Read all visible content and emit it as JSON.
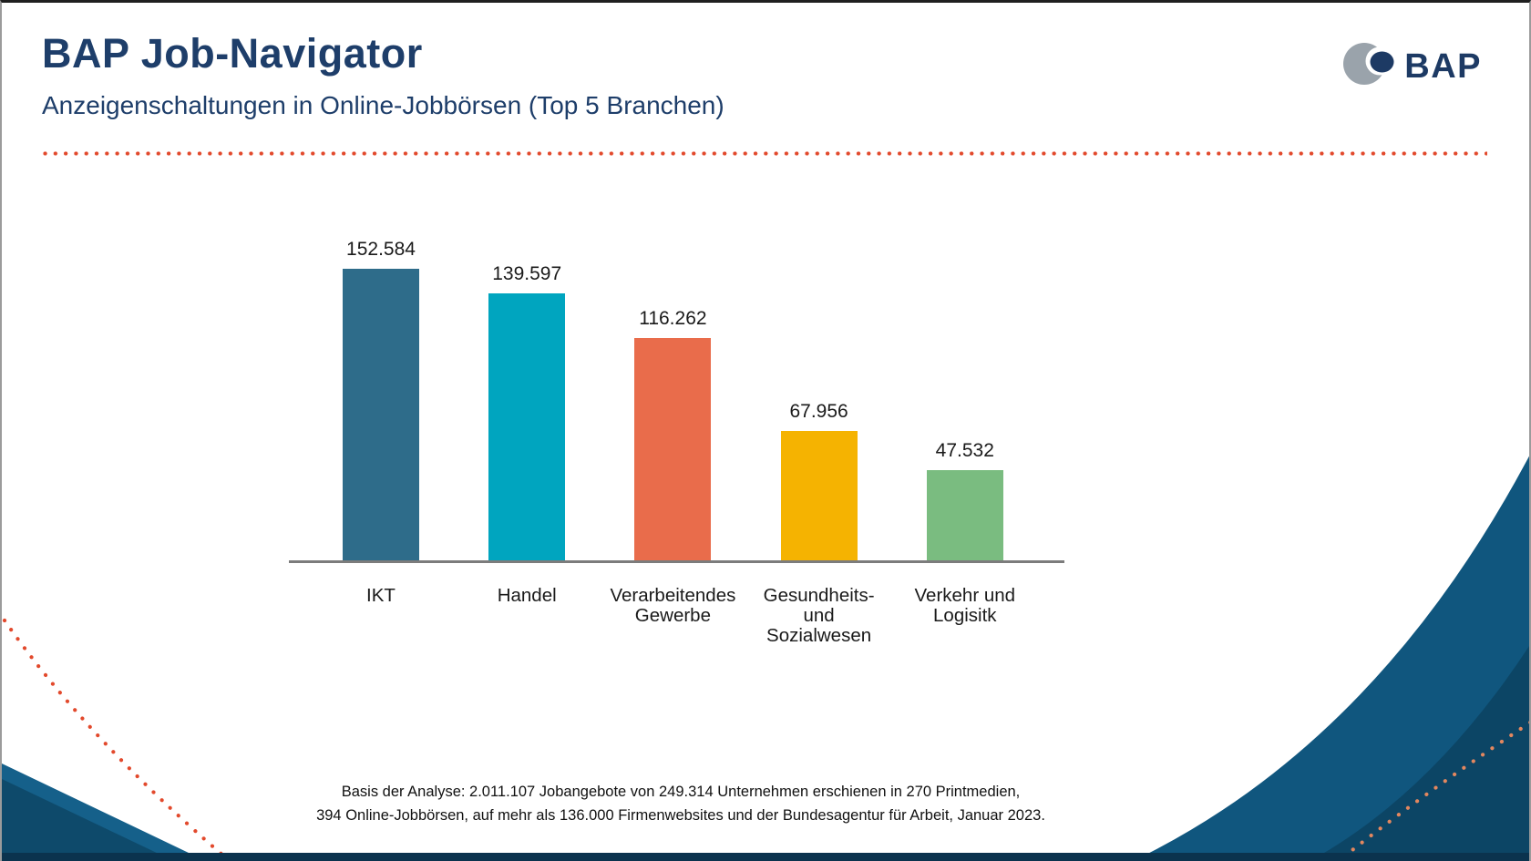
{
  "header": {
    "title": "BAP Job-Navigator",
    "subtitle": "Anzeigenschaltungen in Online-Jobbörsen (Top 5 Branchen)",
    "logo_text": "BAP"
  },
  "chart_data": {
    "type": "bar",
    "title": "Anzeigenschaltungen in Online-Jobbörsen (Top 5 Branchen)",
    "categories": [
      "IKT",
      "Handel",
      "Verarbeitendes Gewerbe",
      "Gesundheits- und Sozialwesen",
      "Verkehr und Logisitk"
    ],
    "category_labels_multiline": [
      "IKT",
      "Handel",
      "Verarbeitendes\nGewerbe",
      "Gesundheits-\nund\nSozialwesen",
      "Verkehr und\nLogisitk"
    ],
    "values": [
      152584,
      139597,
      116262,
      67956,
      47532
    ],
    "value_labels": [
      "152.584",
      "139.597",
      "116.262",
      "67.956",
      "47.532"
    ],
    "bar_colors": [
      "#2e6c8a",
      "#00a5bf",
      "#e96c4b",
      "#f5b301",
      "#7abc80"
    ],
    "ylim": [
      0,
      160000
    ],
    "xlabel": "",
    "ylabel": "",
    "grid": false,
    "legend": false,
    "value_labels_position": "above-bars"
  },
  "footer": {
    "line1": "Basis der Analyse: 2.011.107 Jobangebote von 249.314 Unternehmen erschienen in 270 Printmedien,",
    "line2": "394 Online-Jobbörsen, auf mehr als 136.000 Firmenwebsites und der Bundesagentur für Arbeit, Januar 2023."
  },
  "colors": {
    "title_text": "#1e3e6a",
    "separator_dots": "#e2492c",
    "axis_line": "#7c7c7c",
    "corner_swoosh_blue": "#10567e",
    "corner_swoosh_dark_blue": "#0c4565",
    "corner_wedge_light": "#15608a",
    "corner_wedge_dark": "#0e4a6b",
    "bottom_bar": "#0b334e",
    "corner_dots_salmon": "#e3875f",
    "logo_gray": "#9aa3ab",
    "logo_navy": "#1d3a64"
  }
}
